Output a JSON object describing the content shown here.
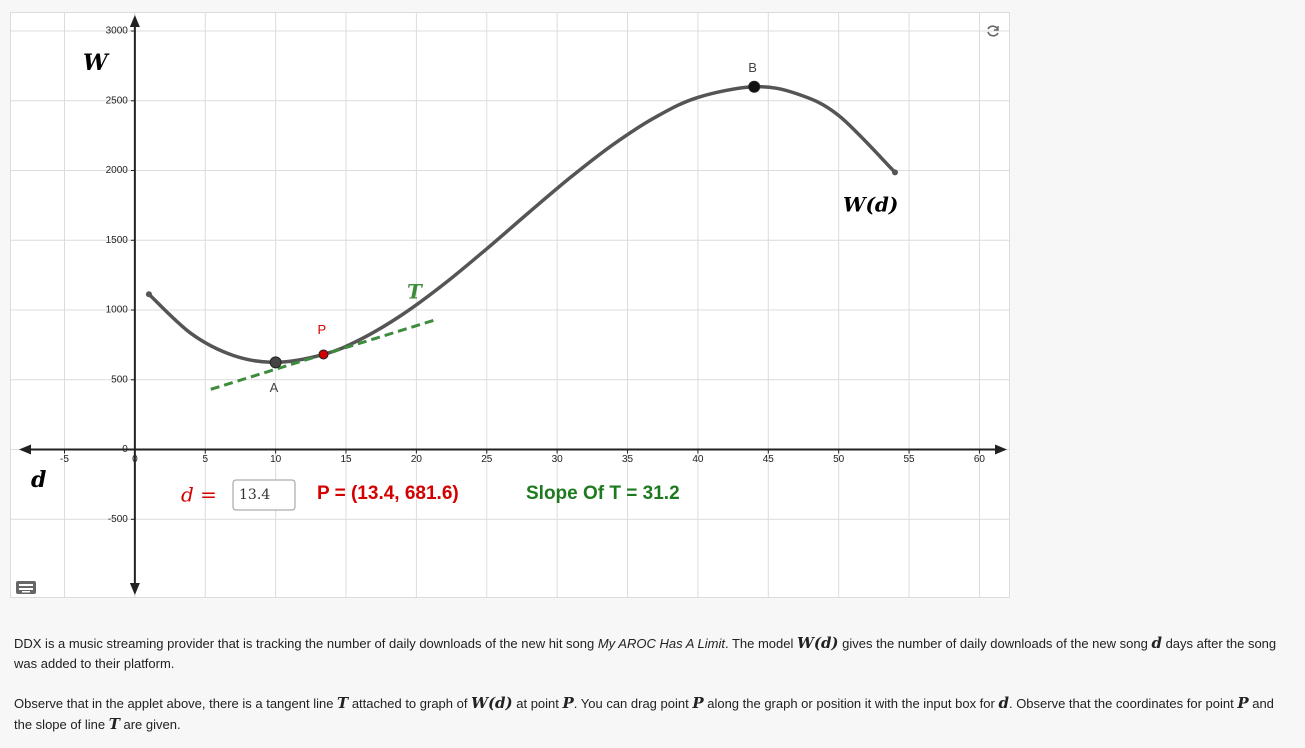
{
  "chart_data": {
    "type": "line",
    "x": [
      1,
      4,
      7,
      10,
      13.4,
      16,
      19,
      22,
      25,
      28,
      31,
      34,
      37,
      40,
      44,
      47,
      50,
      54
    ],
    "series": [
      {
        "name": "W(d)",
        "color": "#555555",
        "values": [
          1113,
          831,
          674,
          625,
          681.6,
          788,
          967,
          1189,
          1439,
          1700,
          1955,
          2188,
          2383,
          2524,
          2600,
          2551,
          2394,
          1987
        ]
      }
    ],
    "xlabel": "d",
    "ylabel": "W",
    "xlim": [
      -8.8,
      62.1
    ],
    "ylim": [
      -1057,
      3129
    ],
    "xticks": [
      -5,
      0,
      5,
      10,
      15,
      20,
      25,
      30,
      35,
      40,
      45,
      50,
      55,
      60
    ],
    "yticks": [
      -500,
      0,
      500,
      1000,
      1500,
      2000,
      2500,
      3000
    ],
    "grid": true,
    "points": [
      {
        "label": "A",
        "x": 10,
        "y": 625,
        "color": "#444444"
      },
      {
        "label": "P",
        "x": 13.4,
        "y": 681.6,
        "color": "#d40000"
      },
      {
        "label": "B",
        "x": 44,
        "y": 2600,
        "color": "#111111"
      }
    ],
    "tangent": {
      "label": "T",
      "slope": 31.2,
      "color": "#3d8b3d"
    },
    "input": {
      "label": "d =",
      "value": "13.4"
    },
    "point_text": "P = (13.4, 681.6)",
    "slope_text": "Slope Of T = 31.2"
  },
  "paragraphs": [
    [
      {
        "text": "DDX is a music streaming provider that is tracking the number of daily downloads of the new hit song ",
        "style": "plain"
      },
      {
        "text": "My AROC Has A Limit",
        "style": "italic"
      },
      {
        "text": ". The model ",
        "style": "plain"
      },
      {
        "text": "W(d)",
        "style": "math"
      },
      {
        "text": " gives the number of daily downloads of the new song ",
        "style": "plain"
      },
      {
        "text": "d",
        "style": "math"
      },
      {
        "text": " days after the song was added to their platform.",
        "style": "plain"
      }
    ],
    [
      {
        "text": "Observe that in the applet above, there is a tangent line ",
        "style": "plain"
      },
      {
        "text": "T",
        "style": "math"
      },
      {
        "text": " attached to graph of ",
        "style": "plain"
      },
      {
        "text": "W(d)",
        "style": "math"
      },
      {
        "text": " at point ",
        "style": "plain"
      },
      {
        "text": "P",
        "style": "math"
      },
      {
        "text": ". You can drag point ",
        "style": "plain"
      },
      {
        "text": "P",
        "style": "math"
      },
      {
        "text": " along the graph or position it with the input box for ",
        "style": "plain"
      },
      {
        "text": "d",
        "style": "math"
      },
      {
        "text": ". Observe that the coordinates for point ",
        "style": "plain"
      },
      {
        "text": "P",
        "style": "math"
      },
      {
        "text": " and the slope of line ",
        "style": "plain"
      },
      {
        "text": "T",
        "style": "math"
      },
      {
        "text": " are given.",
        "style": "plain"
      }
    ]
  ]
}
